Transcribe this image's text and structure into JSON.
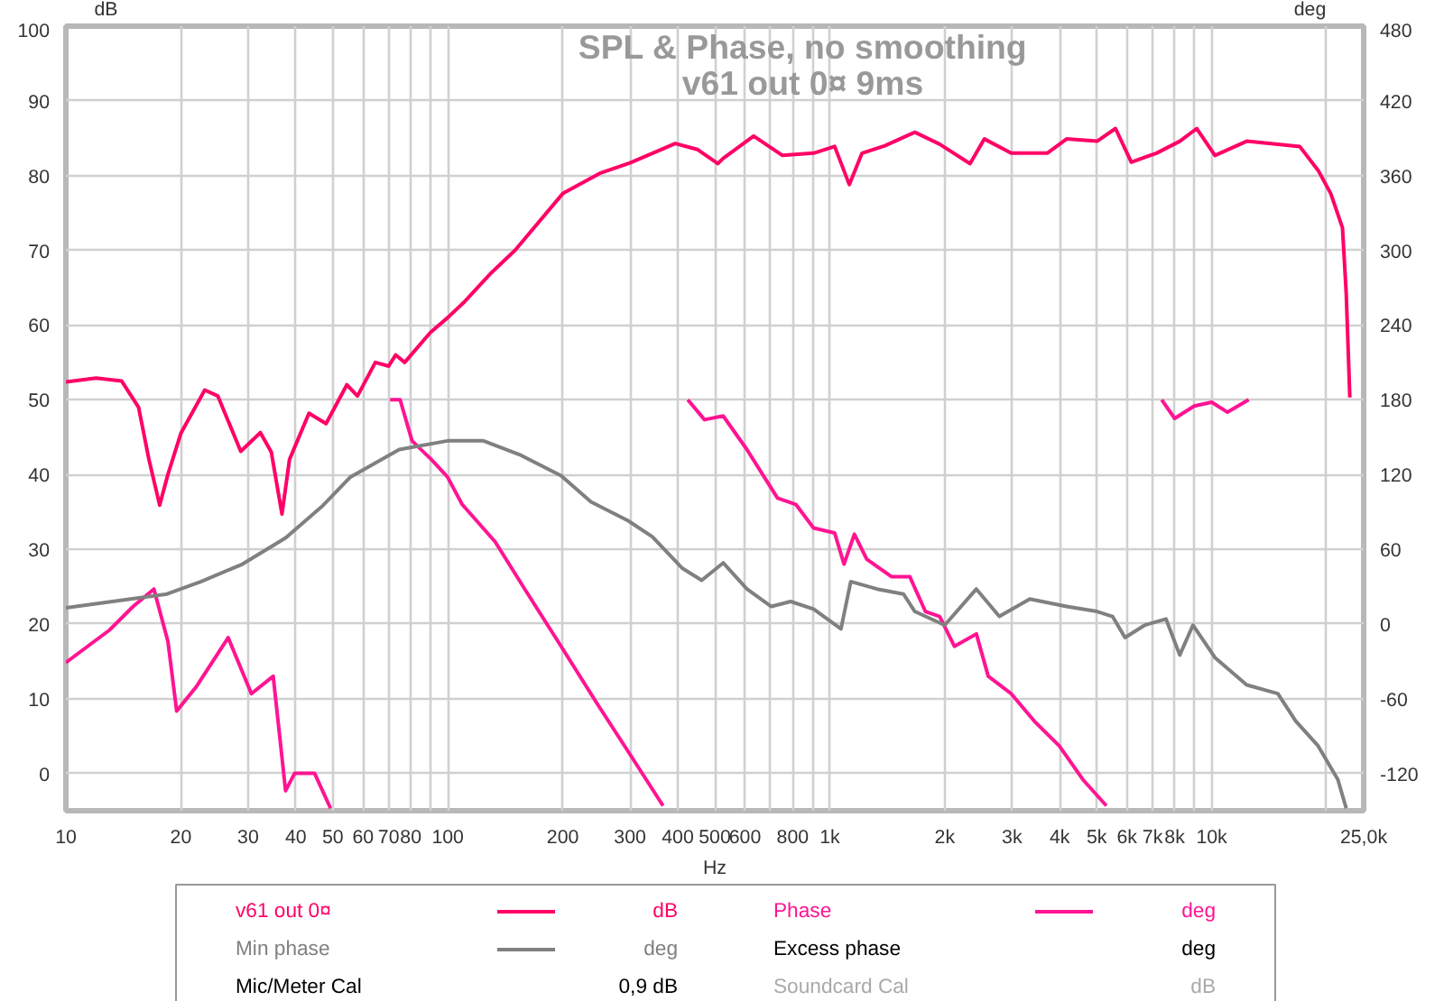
{
  "chart_data": {
    "type": "line",
    "title": "SPL & Phase, no smoothing",
    "subtitle": "v61 out 0¤ 9ms",
    "xlabel": "Hz",
    "ylabel": "dB",
    "y2label": "deg",
    "log": "x",
    "grid": true,
    "legend": "bottom",
    "marker": "none",
    "line_style": "solid",
    "xlim": [
      10,
      25000
    ],
    "ylim": [
      -5,
      100
    ],
    "y2lim": [
      -150,
      480
    ],
    "xticks": [
      10,
      20,
      30,
      40,
      50,
      60,
      70,
      80,
      {
        "value": 90,
        "label": null
      },
      100,
      200,
      300,
      400,
      500,
      600,
      {
        "value": 700,
        "label": null
      },
      800,
      {
        "value": 900,
        "label": null
      },
      {
        "value": 1000,
        "label": "1k"
      },
      {
        "value": 2000,
        "label": "2k"
      },
      {
        "value": 3000,
        "label": "3k"
      },
      {
        "value": 4000,
        "label": "4k"
      },
      {
        "value": 5000,
        "label": "5k"
      },
      {
        "value": 6000,
        "label": "6k"
      },
      {
        "value": 7000,
        "label": "7k"
      },
      {
        "value": 8000,
        "label": "8k"
      },
      {
        "value": 9000,
        "label": null
      },
      {
        "value": 10000,
        "label": "10k"
      },
      {
        "value": 20000,
        "label": null
      },
      {
        "value": 25000,
        "label": "25,0k"
      }
    ],
    "yticks": [
      0,
      10,
      20,
      30,
      40,
      50,
      60,
      70,
      80,
      90,
      100
    ],
    "y2ticks": [
      -120,
      -60,
      0,
      60,
      120,
      180,
      240,
      300,
      360,
      420,
      480
    ],
    "series": [
      {
        "name": "v61 out 0¤",
        "color": "#ff0066",
        "x": [
          10,
          12,
          14,
          15.5,
          16.5,
          17.6,
          18.5,
          20,
          23.1,
          25,
          28.7,
          32.3,
          34.5,
          36.8,
          38.5,
          43.3,
          48,
          54.4,
          58,
          64.6,
          70,
          73,
          77.1,
          90,
          100,
          110,
          130,
          150,
          200,
          250,
          300,
          394,
          450,
          509,
          526,
          632,
          752,
          907,
          1030,
          1125,
          1215,
          1394,
          1670,
          1940,
          2330,
          2540,
          2985,
          3710,
          4170,
          5010,
          5600,
          6160,
          7170,
          8250,
          9140,
          10200,
          12350,
          14900,
          17000,
          19000,
          20500,
          22000,
          22500,
          23000
        ],
        "values": [
          52.4,
          52.9,
          52.5,
          49,
          42,
          35.9,
          40,
          45.5,
          51.3,
          50.5,
          43.1,
          45.6,
          43,
          34.7,
          42,
          48.2,
          46.8,
          52,
          50.5,
          55,
          54.5,
          56,
          55,
          59,
          61,
          63,
          67,
          70,
          77.6,
          80.3,
          81.7,
          84.3,
          83.5,
          81.6,
          82.3,
          85.3,
          82.7,
          83,
          83.9,
          78.8,
          83,
          84,
          85.8,
          84.2,
          81.6,
          84.9,
          83,
          83,
          84.9,
          84.6,
          86.3,
          81.8,
          83,
          84.6,
          86.3,
          82.7,
          84.6,
          84.2,
          83.9,
          80.7,
          77.6,
          73,
          64.3,
          50.3
        ]
      },
      {
        "name": "Phase",
        "color": "#ff1493",
        "axis": "y2",
        "x": [
          10,
          13,
          15,
          17,
          18.5,
          19.5,
          22,
          26.6,
          30.6,
          34.9,
          37.6,
          39.7,
          44.8,
          49.3,
          52,
          70.6,
          75,
          80.6,
          90.6,
          99.8,
          109,
          133,
          159,
          198,
          246,
          296,
          366,
          400,
          425,
          470,
          526,
          607,
          730,
          815,
          907,
          1030,
          1090,
          1160,
          1250,
          1450,
          1620,
          1780,
          1940,
          2120,
          2420,
          2600,
          2985,
          3430,
          3990,
          4600,
          5300,
          5600,
          7400,
          8000,
          9000,
          10000,
          11000,
          12500
        ],
        "values": [
          -31,
          -5,
          14,
          28,
          -14,
          -70,
          -50,
          -11,
          -56,
          -42,
          -134,
          -120,
          -120,
          -148,
          null,
          180,
          180,
          147,
          132,
          118,
          96,
          66,
          28,
          -18,
          -64,
          -102,
          -146,
          null,
          180,
          164,
          167,
          140,
          101,
          96,
          77,
          73,
          48,
          72,
          52,
          38,
          38,
          10,
          6,
          -18,
          -8,
          -42,
          -56,
          -78,
          -98,
          -125,
          -146,
          null,
          180,
          165,
          175,
          178,
          170,
          180
        ]
      },
      {
        "name": "Min phase",
        "color": "#808080",
        "axis": "y2",
        "x": [
          10,
          18.4,
          22.6,
          29,
          37.6,
          46.7,
          55.6,
          74.6,
          99.8,
          124,
          154,
          198,
          237,
          296,
          343,
          410,
          462,
          526,
          607,
          703,
          790,
          907,
          1070,
          1135,
          1330,
          1560,
          1670,
          2000,
          2420,
          2780,
          3340,
          4170,
          5010,
          5500,
          5930,
          6680,
          7590,
          8250,
          8930,
          10200,
          12350,
          14900,
          16600,
          19000,
          21400,
          22500
        ],
        "values": [
          13,
          24,
          34,
          48,
          69,
          94,
          118,
          140,
          147,
          147,
          136,
          119,
          98,
          83,
          70,
          45,
          35,
          49,
          28,
          14,
          18,
          12,
          -4,
          34,
          28,
          24,
          10,
          -1,
          28,
          6,
          20,
          14,
          10,
          6,
          -11,
          -1,
          4,
          -25,
          -1,
          -27,
          -49,
          -56,
          -78,
          -98,
          -125,
          -148
        ]
      }
    ],
    "annotations": [
      "dB",
      "deg",
      "deg",
      "Excess phase",
      "deg",
      "Mic/Meter Cal",
      "0,9 dB",
      "Soundcard Cal",
      "dB"
    ]
  }
}
